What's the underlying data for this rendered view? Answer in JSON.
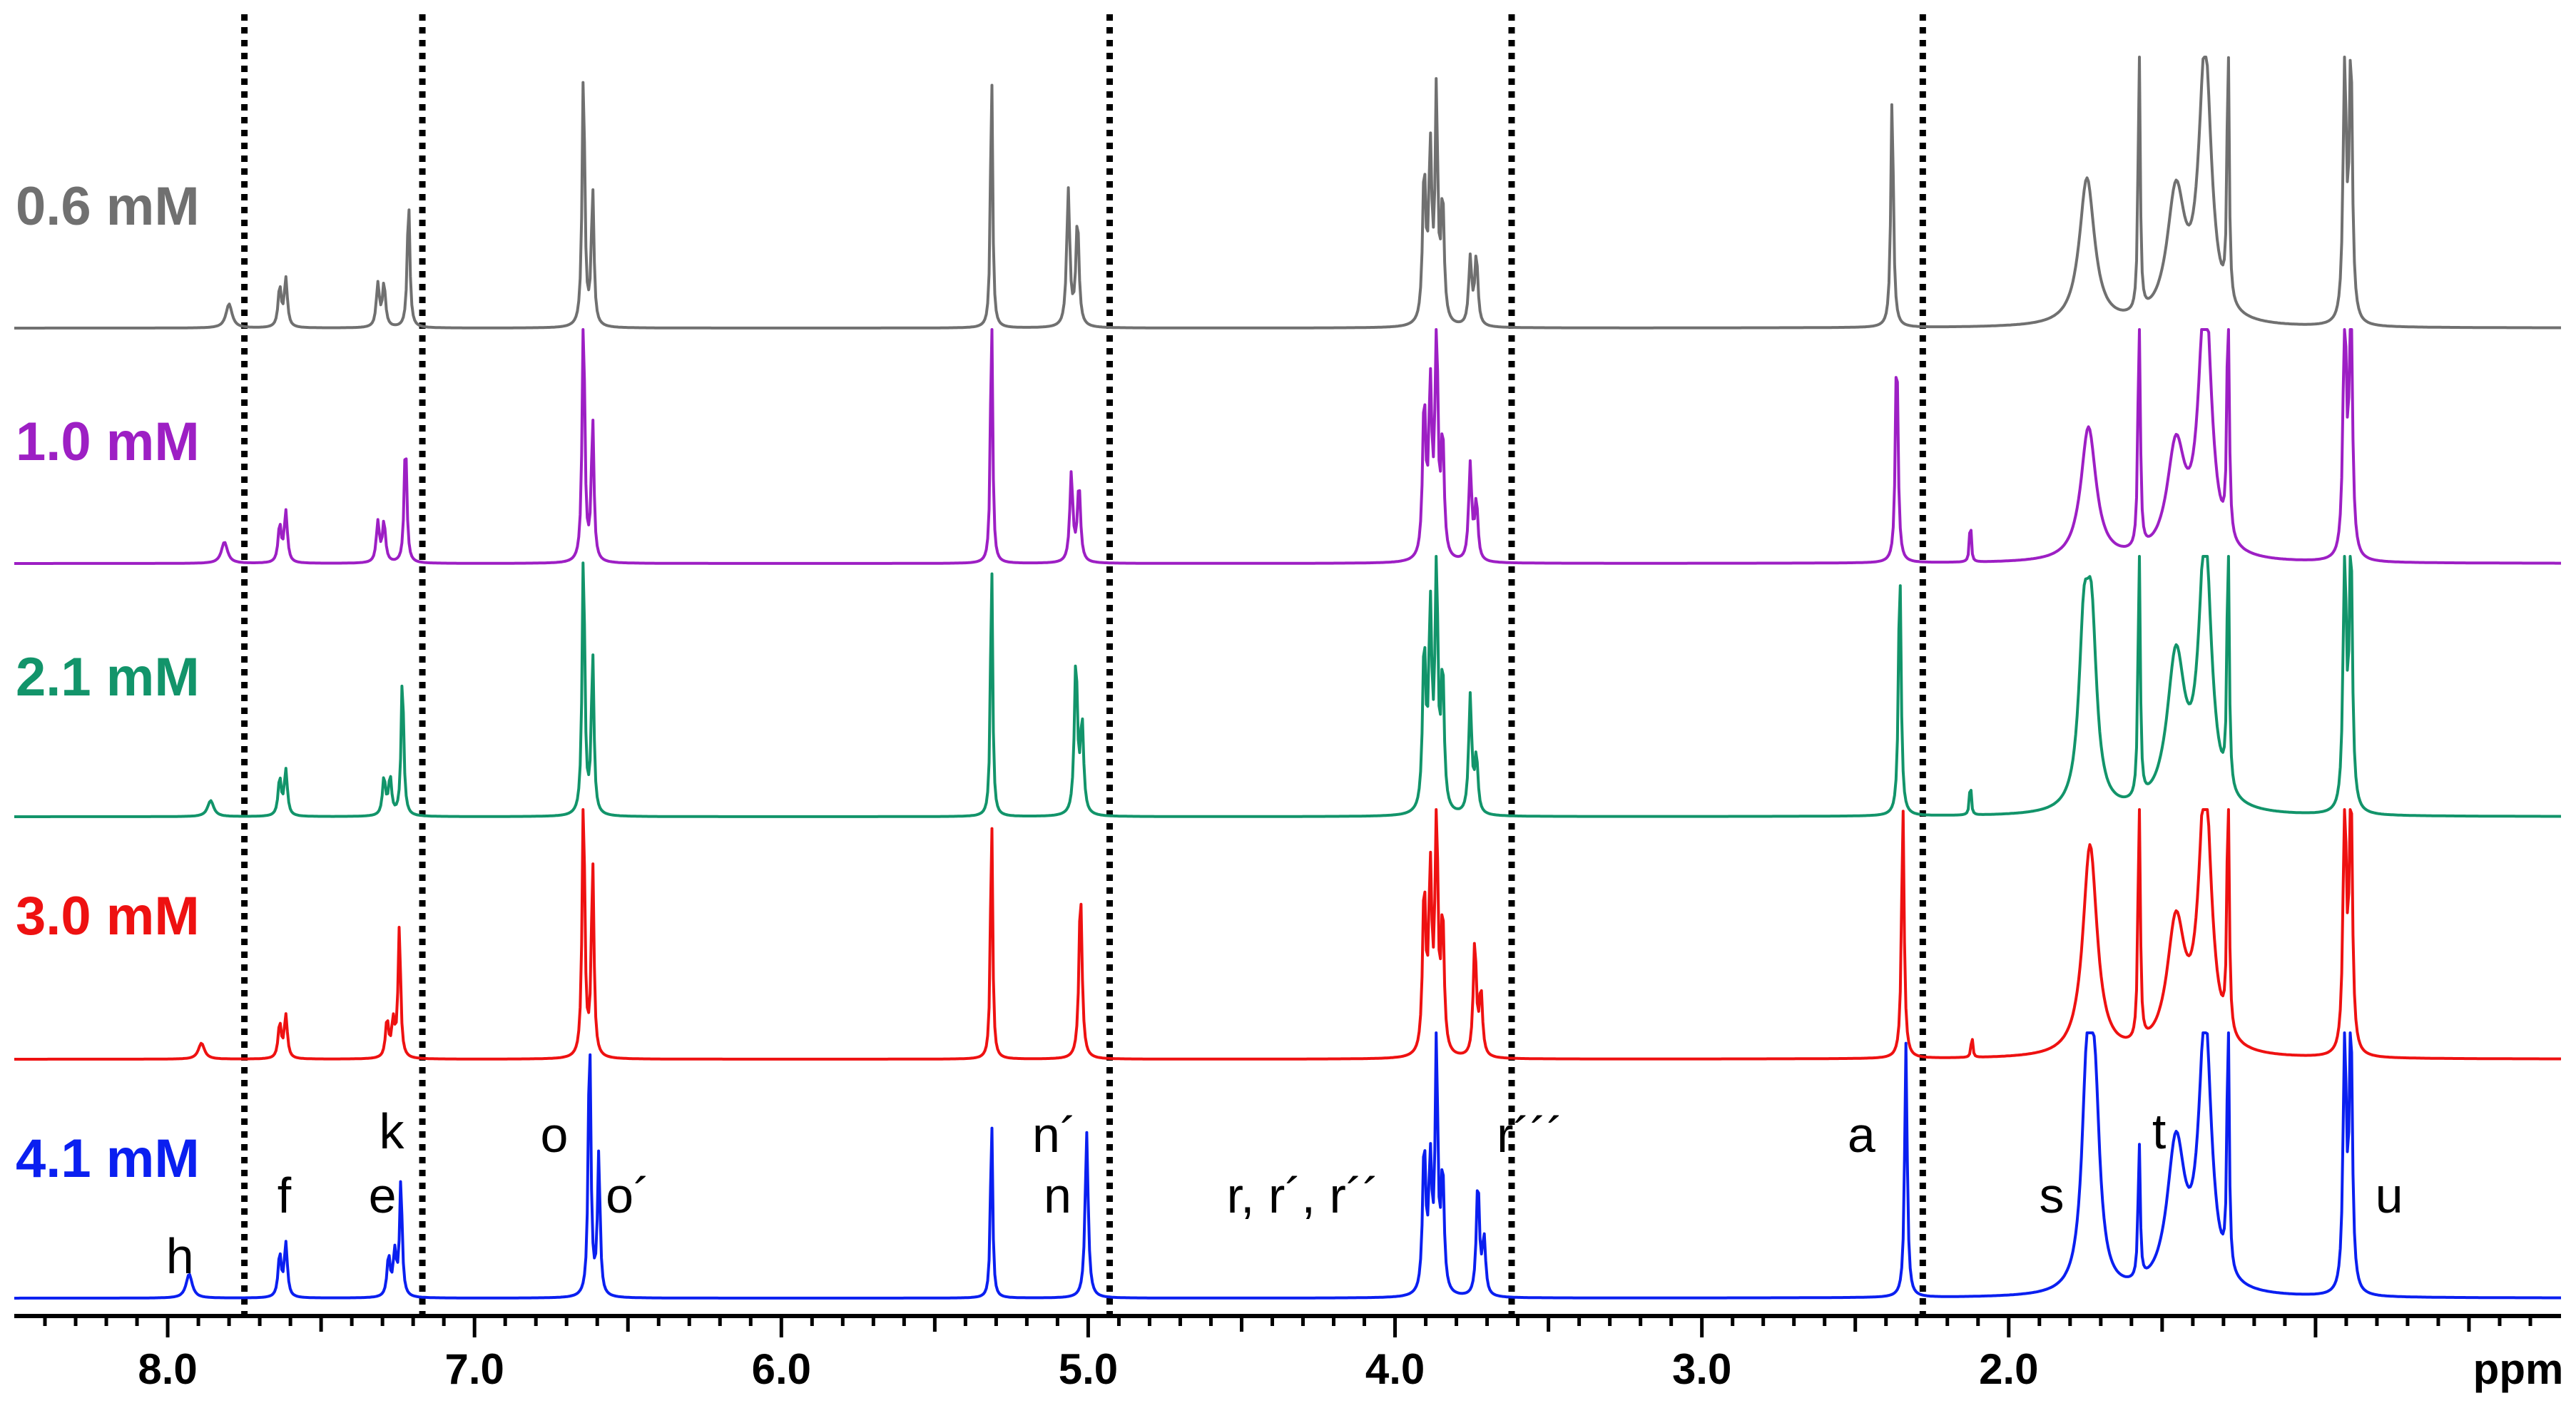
{
  "chart_data": {
    "type": "line",
    "xlabel": "ppm",
    "x_reversed": true,
    "xlim": [
      8.5,
      0.2
    ],
    "x_ticks": [
      {
        "value": 8.0,
        "label": "8.0"
      },
      {
        "value": 7.0,
        "label": "7.0"
      },
      {
        "value": 6.0,
        "label": "6.0"
      },
      {
        "value": 5.0,
        "label": "5.0"
      },
      {
        "value": 4.0,
        "label": "4.0"
      },
      {
        "value": 3.0,
        "label": "3.0"
      },
      {
        "value": 2.0,
        "label": "2.0"
      }
    ],
    "dotted_lines_ppm": [
      7.75,
      7.17,
      4.93,
      3.62,
      2.28
    ],
    "series": [
      {
        "name": "0.6 mM",
        "color": "#707070",
        "peaks": [
          {
            "ppm": 7.8,
            "height": 0.09,
            "width": 0.012
          },
          {
            "ppm": 7.635,
            "height": 0.15,
            "width": 0.006
          },
          {
            "ppm": 7.615,
            "height": 0.18,
            "width": 0.006
          },
          {
            "ppm": 7.315,
            "height": 0.16,
            "width": 0.006
          },
          {
            "ppm": 7.295,
            "height": 0.16,
            "width": 0.006
          },
          {
            "ppm": 7.215,
            "height": 0.48,
            "width": 0.005
          },
          {
            "ppm": 6.645,
            "height": 0.97,
            "width": 0.005
          },
          {
            "ppm": 6.615,
            "height": 0.51,
            "width": 0.005
          },
          {
            "ppm": 5.315,
            "height": 1.0,
            "width": 0.004
          },
          {
            "ppm": 5.065,
            "height": 0.51,
            "width": 0.006
          },
          {
            "ppm": 5.035,
            "height": 0.4,
            "width": 0.006
          },
          {
            "ppm": 3.905,
            "height": 0.56,
            "width": 0.006
          },
          {
            "ppm": 3.885,
            "height": 0.63,
            "width": 0.006
          },
          {
            "ppm": 3.865,
            "height": 0.85,
            "width": 0.005
          },
          {
            "ppm": 3.845,
            "height": 0.46,
            "width": 0.006
          },
          {
            "ppm": 3.755,
            "height": 0.25,
            "width": 0.006
          },
          {
            "ppm": 3.735,
            "height": 0.26,
            "width": 0.006
          },
          {
            "ppm": 2.38,
            "height": 0.87,
            "width": 0.005
          },
          {
            "ppm": 1.745,
            "height": 0.55,
            "width": 0.03
          },
          {
            "ppm": 1.575,
            "height": 1.0,
            "width": 0.004
          },
          {
            "ppm": 1.455,
            "height": 0.48,
            "width": 0.035
          },
          {
            "ppm": 1.36,
            "height": 1.0,
            "width": 0.025
          },
          {
            "ppm": 1.285,
            "height": 1.0,
            "width": 0.004
          },
          {
            "ppm": 0.905,
            "height": 1.0,
            "width": 0.006
          },
          {
            "ppm": 0.885,
            "height": 1.0,
            "width": 0.006
          }
        ]
      },
      {
        "name": "1.0 mM",
        "color": "#9d1fc4",
        "peaks": [
          {
            "ppm": 7.815,
            "height": 0.08,
            "width": 0.012
          },
          {
            "ppm": 7.635,
            "height": 0.14,
            "width": 0.006
          },
          {
            "ppm": 7.615,
            "height": 0.19,
            "width": 0.006
          },
          {
            "ppm": 7.315,
            "height": 0.15,
            "width": 0.006
          },
          {
            "ppm": 7.295,
            "height": 0.15,
            "width": 0.006
          },
          {
            "ppm": 7.225,
            "height": 0.47,
            "width": 0.005
          },
          {
            "ppm": 6.645,
            "height": 0.95,
            "width": 0.005
          },
          {
            "ppm": 6.615,
            "height": 0.53,
            "width": 0.005
          },
          {
            "ppm": 5.315,
            "height": 1.0,
            "width": 0.004
          },
          {
            "ppm": 5.055,
            "height": 0.33,
            "width": 0.006
          },
          {
            "ppm": 5.03,
            "height": 0.29,
            "width": 0.006
          },
          {
            "ppm": 3.905,
            "height": 0.58,
            "width": 0.006
          },
          {
            "ppm": 3.885,
            "height": 0.62,
            "width": 0.006
          },
          {
            "ppm": 3.865,
            "height": 0.97,
            "width": 0.005
          },
          {
            "ppm": 3.845,
            "height": 0.45,
            "width": 0.006
          },
          {
            "ppm": 3.755,
            "height": 0.36,
            "width": 0.006
          },
          {
            "ppm": 3.735,
            "height": 0.22,
            "width": 0.006
          },
          {
            "ppm": 2.365,
            "height": 0.83,
            "width": 0.005
          },
          {
            "ppm": 2.125,
            "height": 0.18,
            "width": 0.003
          },
          {
            "ppm": 1.74,
            "height": 0.5,
            "width": 0.03
          },
          {
            "ppm": 1.575,
            "height": 1.0,
            "width": 0.004
          },
          {
            "ppm": 1.455,
            "height": 0.41,
            "width": 0.035
          },
          {
            "ppm": 1.36,
            "height": 1.0,
            "width": 0.025
          },
          {
            "ppm": 1.285,
            "height": 1.0,
            "width": 0.004
          },
          {
            "ppm": 0.905,
            "height": 1.0,
            "width": 0.006
          },
          {
            "ppm": 0.885,
            "height": 1.0,
            "width": 0.006
          }
        ]
      },
      {
        "name": "2.1 mM",
        "color": "#12946a",
        "peaks": [
          {
            "ppm": 7.86,
            "height": 0.06,
            "width": 0.012
          },
          {
            "ppm": 7.635,
            "height": 0.14,
            "width": 0.006
          },
          {
            "ppm": 7.615,
            "height": 0.17,
            "width": 0.006
          },
          {
            "ppm": 7.295,
            "height": 0.14,
            "width": 0.006
          },
          {
            "ppm": 7.275,
            "height": 0.14,
            "width": 0.006
          },
          {
            "ppm": 7.235,
            "height": 0.53,
            "width": 0.005
          },
          {
            "ppm": 6.645,
            "height": 1.0,
            "width": 0.005
          },
          {
            "ppm": 6.615,
            "height": 0.6,
            "width": 0.005
          },
          {
            "ppm": 5.315,
            "height": 1.0,
            "width": 0.004
          },
          {
            "ppm": 5.04,
            "height": 0.58,
            "width": 0.006
          },
          {
            "ppm": 5.02,
            "height": 0.34,
            "width": 0.006
          },
          {
            "ppm": 3.905,
            "height": 0.61,
            "width": 0.006
          },
          {
            "ppm": 3.885,
            "height": 0.73,
            "width": 0.006
          },
          {
            "ppm": 3.865,
            "height": 1.0,
            "width": 0.005
          },
          {
            "ppm": 3.845,
            "height": 0.52,
            "width": 0.006
          },
          {
            "ppm": 3.755,
            "height": 0.44,
            "width": 0.006
          },
          {
            "ppm": 3.735,
            "height": 0.21,
            "width": 0.006
          },
          {
            "ppm": 2.355,
            "height": 0.95,
            "width": 0.005
          },
          {
            "ppm": 2.125,
            "height": 0.14,
            "width": 0.003
          },
          {
            "ppm": 1.755,
            "height": 0.6,
            "width": 0.02
          },
          {
            "ppm": 1.73,
            "height": 0.62,
            "width": 0.02
          },
          {
            "ppm": 1.575,
            "height": 1.0,
            "width": 0.004
          },
          {
            "ppm": 1.455,
            "height": 0.57,
            "width": 0.035
          },
          {
            "ppm": 1.36,
            "height": 1.0,
            "width": 0.025
          },
          {
            "ppm": 1.285,
            "height": 1.0,
            "width": 0.004
          },
          {
            "ppm": 0.905,
            "height": 1.0,
            "width": 0.006
          },
          {
            "ppm": 0.885,
            "height": 1.0,
            "width": 0.006
          }
        ]
      },
      {
        "name": "3.0 mM",
        "color": "#ee1111",
        "peaks": [
          {
            "ppm": 7.89,
            "height": 0.06,
            "width": 0.012
          },
          {
            "ppm": 7.635,
            "height": 0.13,
            "width": 0.006
          },
          {
            "ppm": 7.615,
            "height": 0.16,
            "width": 0.006
          },
          {
            "ppm": 7.285,
            "height": 0.14,
            "width": 0.006
          },
          {
            "ppm": 7.265,
            "height": 0.13,
            "width": 0.006
          },
          {
            "ppm": 7.245,
            "height": 0.49,
            "width": 0.005
          },
          {
            "ppm": 6.645,
            "height": 1.0,
            "width": 0.005
          },
          {
            "ppm": 6.615,
            "height": 0.73,
            "width": 0.005
          },
          {
            "ppm": 5.315,
            "height": 0.95,
            "width": 0.004
          },
          {
            "ppm": 5.025,
            "height": 0.63,
            "width": 0.006
          },
          {
            "ppm": 3.905,
            "height": 0.61,
            "width": 0.006
          },
          {
            "ppm": 3.885,
            "height": 0.66,
            "width": 0.006
          },
          {
            "ppm": 3.865,
            "height": 1.0,
            "width": 0.005
          },
          {
            "ppm": 3.845,
            "height": 0.51,
            "width": 0.006
          },
          {
            "ppm": 3.74,
            "height": 0.43,
            "width": 0.006
          },
          {
            "ppm": 3.72,
            "height": 0.24,
            "width": 0.006
          },
          {
            "ppm": 2.345,
            "height": 0.95,
            "width": 0.005
          },
          {
            "ppm": 2.12,
            "height": 0.09,
            "width": 0.003
          },
          {
            "ppm": 1.735,
            "height": 0.79,
            "width": 0.028
          },
          {
            "ppm": 1.575,
            "height": 1.0,
            "width": 0.004
          },
          {
            "ppm": 1.455,
            "height": 0.48,
            "width": 0.035
          },
          {
            "ppm": 1.36,
            "height": 1.0,
            "width": 0.025
          },
          {
            "ppm": 1.285,
            "height": 1.0,
            "width": 0.004
          },
          {
            "ppm": 0.905,
            "height": 1.0,
            "width": 0.006
          },
          {
            "ppm": 0.885,
            "height": 1.0,
            "width": 0.006
          }
        ]
      },
      {
        "name": "4.1 mM",
        "color": "#0a1ff0",
        "peaks": [
          {
            "ppm": 7.93,
            "height": 0.09,
            "width": 0.012
          },
          {
            "ppm": 7.635,
            "height": 0.16,
            "width": 0.006
          },
          {
            "ppm": 7.615,
            "height": 0.2,
            "width": 0.006
          },
          {
            "ppm": 7.28,
            "height": 0.15,
            "width": 0.006
          },
          {
            "ppm": 7.26,
            "height": 0.16,
            "width": 0.006
          },
          {
            "ppm": 7.24,
            "height": 0.44,
            "width": 0.005
          },
          {
            "ppm": 6.625,
            "height": 1.0,
            "width": 0.005
          },
          {
            "ppm": 6.595,
            "height": 0.53,
            "width": 0.005
          },
          {
            "ppm": 5.315,
            "height": 0.7,
            "width": 0.004
          },
          {
            "ppm": 5.005,
            "height": 0.62,
            "width": 0.006
          },
          {
            "ppm": 3.905,
            "height": 0.55,
            "width": 0.006
          },
          {
            "ppm": 3.885,
            "height": 0.47,
            "width": 0.006
          },
          {
            "ppm": 3.865,
            "height": 0.97,
            "width": 0.005
          },
          {
            "ppm": 3.845,
            "height": 0.45,
            "width": 0.006
          },
          {
            "ppm": 3.73,
            "height": 0.43,
            "width": 0.006
          },
          {
            "ppm": 3.71,
            "height": 0.21,
            "width": 0.006
          },
          {
            "ppm": 2.335,
            "height": 0.95,
            "width": 0.005
          },
          {
            "ppm": 1.745,
            "height": 0.73,
            "width": 0.02
          },
          {
            "ppm": 1.72,
            "height": 0.66,
            "width": 0.02
          },
          {
            "ppm": 1.575,
            "height": 0.52,
            "width": 0.004
          },
          {
            "ppm": 1.455,
            "height": 0.55,
            "width": 0.035
          },
          {
            "ppm": 1.36,
            "height": 1.0,
            "width": 0.025
          },
          {
            "ppm": 1.285,
            "height": 1.0,
            "width": 0.004
          },
          {
            "ppm": 0.905,
            "height": 1.0,
            "width": 0.006
          },
          {
            "ppm": 0.885,
            "height": 1.0,
            "width": 0.006
          }
        ]
      }
    ],
    "annotations": [
      {
        "text": "h",
        "ppm": 7.96
      },
      {
        "text": "f",
        "ppm": 7.62
      },
      {
        "text": "e",
        "ppm": 7.3
      },
      {
        "text": "k",
        "ppm": 7.27
      },
      {
        "text": "o",
        "ppm": 6.74
      },
      {
        "text": "o´",
        "ppm": 6.5
      },
      {
        "text": "n´",
        "ppm": 5.11
      },
      {
        "text": "n",
        "ppm": 5.1
      },
      {
        "text": "r, r´, r´´",
        "ppm": 4.3
      },
      {
        "text": "r´´´",
        "ppm": 3.56
      },
      {
        "text": "a",
        "ppm": 2.48
      },
      {
        "text": "s",
        "ppm": 1.86
      },
      {
        "text": "t",
        "ppm": 1.51
      },
      {
        "text": "u",
        "ppm": 0.76
      }
    ]
  }
}
